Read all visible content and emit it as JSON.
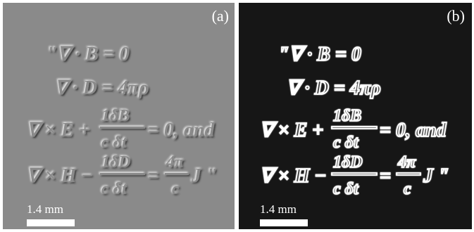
{
  "panels": [
    {
      "tag": "(a)",
      "style": "embossed",
      "background_color": "#8a8a8a",
      "scale_label": "1.4 mm"
    },
    {
      "tag": "(b)",
      "style": "edge-outline",
      "background_color": "#161616",
      "scale_label": "1.4 mm"
    }
  ],
  "equations": {
    "line1": "\"∇ · B = 0",
    "line2": "∇ · D = 4πρ",
    "line3_lhs": "∇ × E +",
    "line3_frac_num": "1δB",
    "line3_frac_den": "c δt",
    "line3_rhs": "= 0, and",
    "line4_lhs": "∇ × H −",
    "line4_frac1_num": "1δD",
    "line4_frac1_den": "c δt",
    "line4_eq": "=",
    "line4_frac2_num": "4π",
    "line4_frac2_den": "c",
    "line4_tail": "J \""
  }
}
